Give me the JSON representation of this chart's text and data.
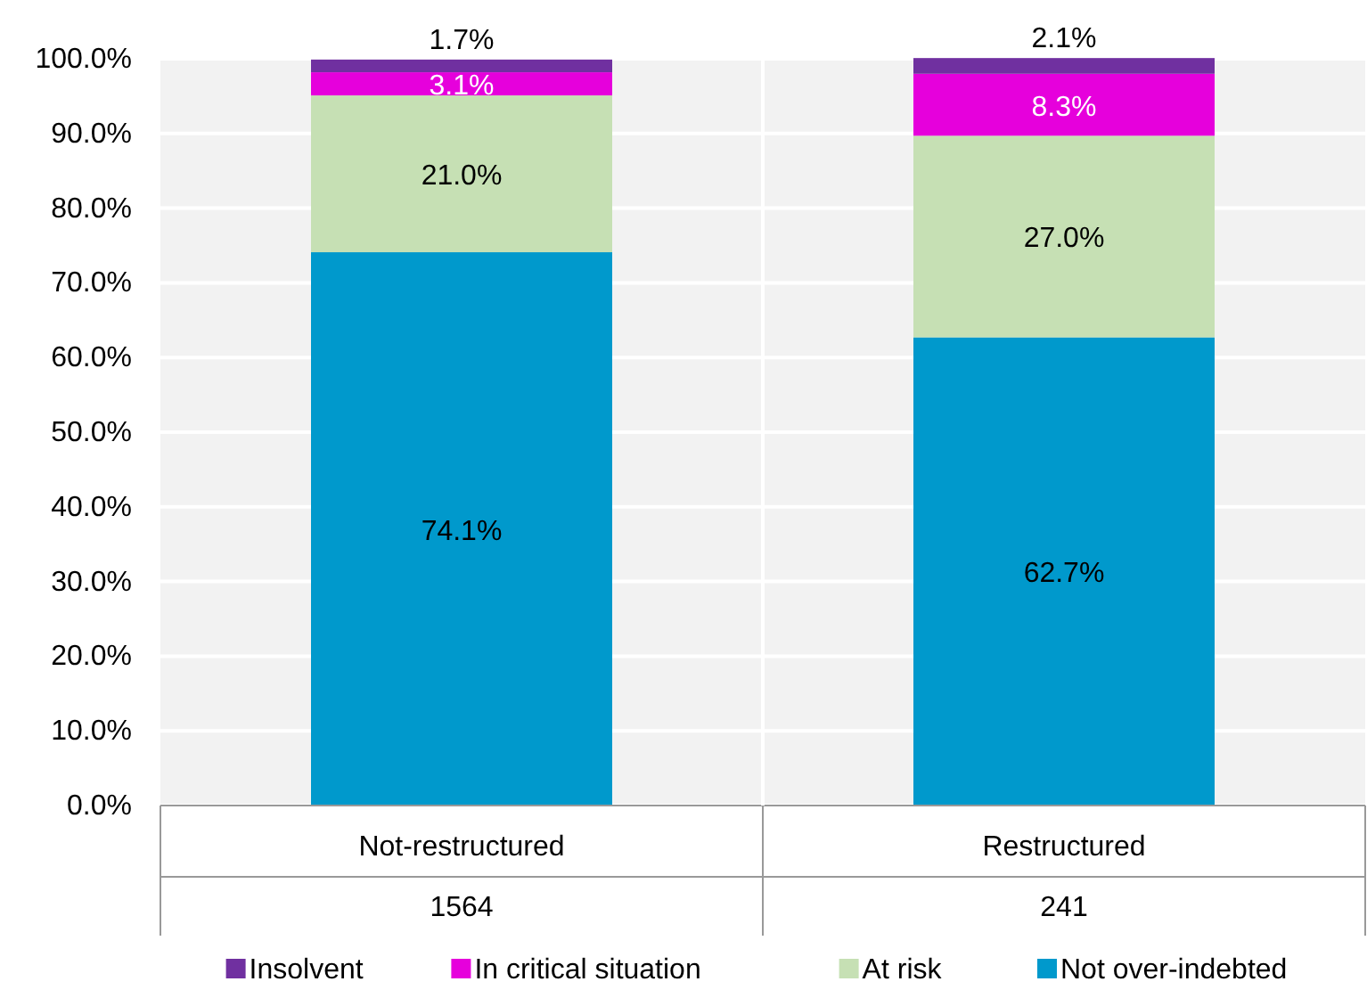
{
  "chart_data": {
    "type": "bar",
    "stacked": true,
    "categories": [
      "Not-restructured",
      "Restructured"
    ],
    "series": [
      {
        "name": "Not over-indebted",
        "color": "#0099cc",
        "values": [
          74.1,
          62.7
        ],
        "value_labels": [
          "74.1%",
          "62.7%"
        ]
      },
      {
        "name": "At risk",
        "color": "#c6e0b4",
        "values": [
          21.0,
          27.0
        ],
        "value_labels": [
          "21.0%",
          "27.0%"
        ]
      },
      {
        "name": "In critical situation",
        "color": "#e600dc",
        "values": [
          3.1,
          8.3
        ],
        "value_labels": [
          "3.1%",
          "8.3%"
        ]
      },
      {
        "name": "Insolvent",
        "color": "#7030a0",
        "values": [
          1.7,
          2.1
        ],
        "value_labels": [
          "1.7%",
          "2.1%"
        ]
      }
    ],
    "ylim": [
      0,
      100
    ],
    "yticks": [
      {
        "value": 0,
        "label": "0.0%"
      },
      {
        "value": 10,
        "label": "10.0%"
      },
      {
        "value": 20,
        "label": "20.0%"
      },
      {
        "value": 30,
        "label": "30.0%"
      },
      {
        "value": 40,
        "label": "40.0%"
      },
      {
        "value": 50,
        "label": "50.0%"
      },
      {
        "value": 60,
        "label": "60.0%"
      },
      {
        "value": 70,
        "label": "70.0%"
      },
      {
        "value": 80,
        "label": "80.0%"
      },
      {
        "value": 90,
        "label": "90.0%"
      },
      {
        "value": 100,
        "label": "100.0%"
      }
    ],
    "annotations": [
      "1564",
      "241"
    ],
    "grid": "y",
    "legend": "bottom"
  }
}
